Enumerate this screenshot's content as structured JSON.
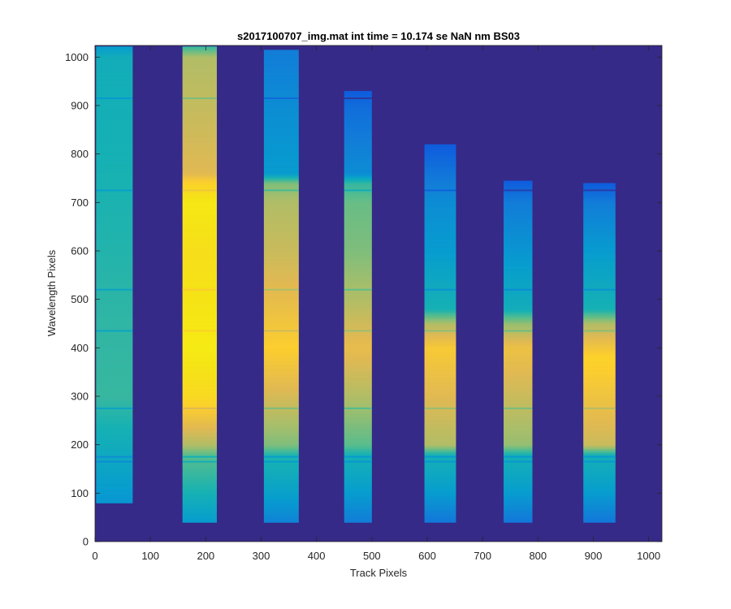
{
  "chart_data": {
    "type": "heatmap",
    "title": "s2017100707_img.mat int time = 10.174 se  NaN nm BS03",
    "xlabel": "Track Pixels",
    "ylabel": "Wavelength Pixels",
    "xlim": [
      0,
      1024
    ],
    "ylim": [
      0,
      1024
    ],
    "xticks": [
      0,
      100,
      200,
      300,
      400,
      500,
      600,
      700,
      800,
      900,
      1000
    ],
    "yticks": [
      0,
      100,
      200,
      300,
      400,
      500,
      600,
      700,
      800,
      900,
      1000
    ],
    "colormap": "parula",
    "color_range": [
      0,
      1
    ],
    "background_level": 0.0,
    "grid": false,
    "tracks": [
      {
        "x_range": [
          2,
          68
        ],
        "y_range": [
          80,
          1022
        ],
        "profile": [
          [
            80,
            0.28
          ],
          [
            180,
            0.36
          ],
          [
            300,
            0.45
          ],
          [
            450,
            0.44
          ],
          [
            600,
            0.42
          ],
          [
            800,
            0.4
          ],
          [
            1000,
            0.38
          ],
          [
            1022,
            0.3
          ]
        ]
      },
      {
        "x_range": [
          158,
          220
        ],
        "y_range": [
          40,
          1022
        ],
        "profile": [
          [
            40,
            0.3
          ],
          [
            100,
            0.4
          ],
          [
            180,
            0.5
          ],
          [
            200,
            0.62
          ],
          [
            300,
            0.85
          ],
          [
            400,
            0.93
          ],
          [
            500,
            0.9
          ],
          [
            600,
            0.88
          ],
          [
            700,
            0.92
          ],
          [
            740,
            0.82
          ],
          [
            760,
            0.7
          ],
          [
            900,
            0.65
          ],
          [
            1000,
            0.62
          ],
          [
            1022,
            0.45
          ]
        ]
      },
      {
        "x_range": [
          305,
          368
        ],
        "y_range": [
          40,
          1015
        ],
        "profile": [
          [
            40,
            0.22
          ],
          [
            100,
            0.32
          ],
          [
            180,
            0.42
          ],
          [
            200,
            0.55
          ],
          [
            300,
            0.68
          ],
          [
            400,
            0.8
          ],
          [
            500,
            0.72
          ],
          [
            600,
            0.66
          ],
          [
            700,
            0.62
          ],
          [
            740,
            0.55
          ],
          [
            760,
            0.3
          ],
          [
            900,
            0.25
          ],
          [
            1015,
            0.2
          ]
        ]
      },
      {
        "x_range": [
          450,
          500
        ],
        "y_range": [
          40,
          930
        ],
        "profile": [
          [
            40,
            0.2
          ],
          [
            100,
            0.3
          ],
          [
            180,
            0.4
          ],
          [
            200,
            0.5
          ],
          [
            300,
            0.62
          ],
          [
            400,
            0.72
          ],
          [
            500,
            0.62
          ],
          [
            600,
            0.55
          ],
          [
            700,
            0.52
          ],
          [
            740,
            0.45
          ],
          [
            760,
            0.25
          ],
          [
            900,
            0.15
          ],
          [
            930,
            0.1
          ]
        ]
      },
      {
        "x_range": [
          595,
          652
        ],
        "y_range": [
          40,
          820
        ],
        "profile": [
          [
            40,
            0.18
          ],
          [
            100,
            0.3
          ],
          [
            180,
            0.4
          ],
          [
            200,
            0.62
          ],
          [
            300,
            0.7
          ],
          [
            400,
            0.78
          ],
          [
            450,
            0.62
          ],
          [
            480,
            0.4
          ],
          [
            600,
            0.3
          ],
          [
            700,
            0.25
          ],
          [
            820,
            0.1
          ]
        ]
      },
      {
        "x_range": [
          738,
          790
        ],
        "y_range": [
          40,
          745
        ],
        "profile": [
          [
            40,
            0.18
          ],
          [
            100,
            0.3
          ],
          [
            180,
            0.4
          ],
          [
            200,
            0.58
          ],
          [
            300,
            0.66
          ],
          [
            400,
            0.74
          ],
          [
            450,
            0.58
          ],
          [
            480,
            0.38
          ],
          [
            600,
            0.28
          ],
          [
            700,
            0.2
          ],
          [
            745,
            0.1
          ]
        ]
      },
      {
        "x_range": [
          882,
          940
        ],
        "y_range": [
          40,
          740
        ],
        "profile": [
          [
            40,
            0.18
          ],
          [
            100,
            0.3
          ],
          [
            180,
            0.4
          ],
          [
            200,
            0.66
          ],
          [
            300,
            0.75
          ],
          [
            380,
            0.82
          ],
          [
            450,
            0.62
          ],
          [
            480,
            0.4
          ],
          [
            600,
            0.3
          ],
          [
            700,
            0.2
          ],
          [
            740,
            0.1
          ]
        ]
      }
    ],
    "absorption_lines_y": [
      165,
      175,
      275,
      435,
      520,
      725,
      915
    ]
  }
}
